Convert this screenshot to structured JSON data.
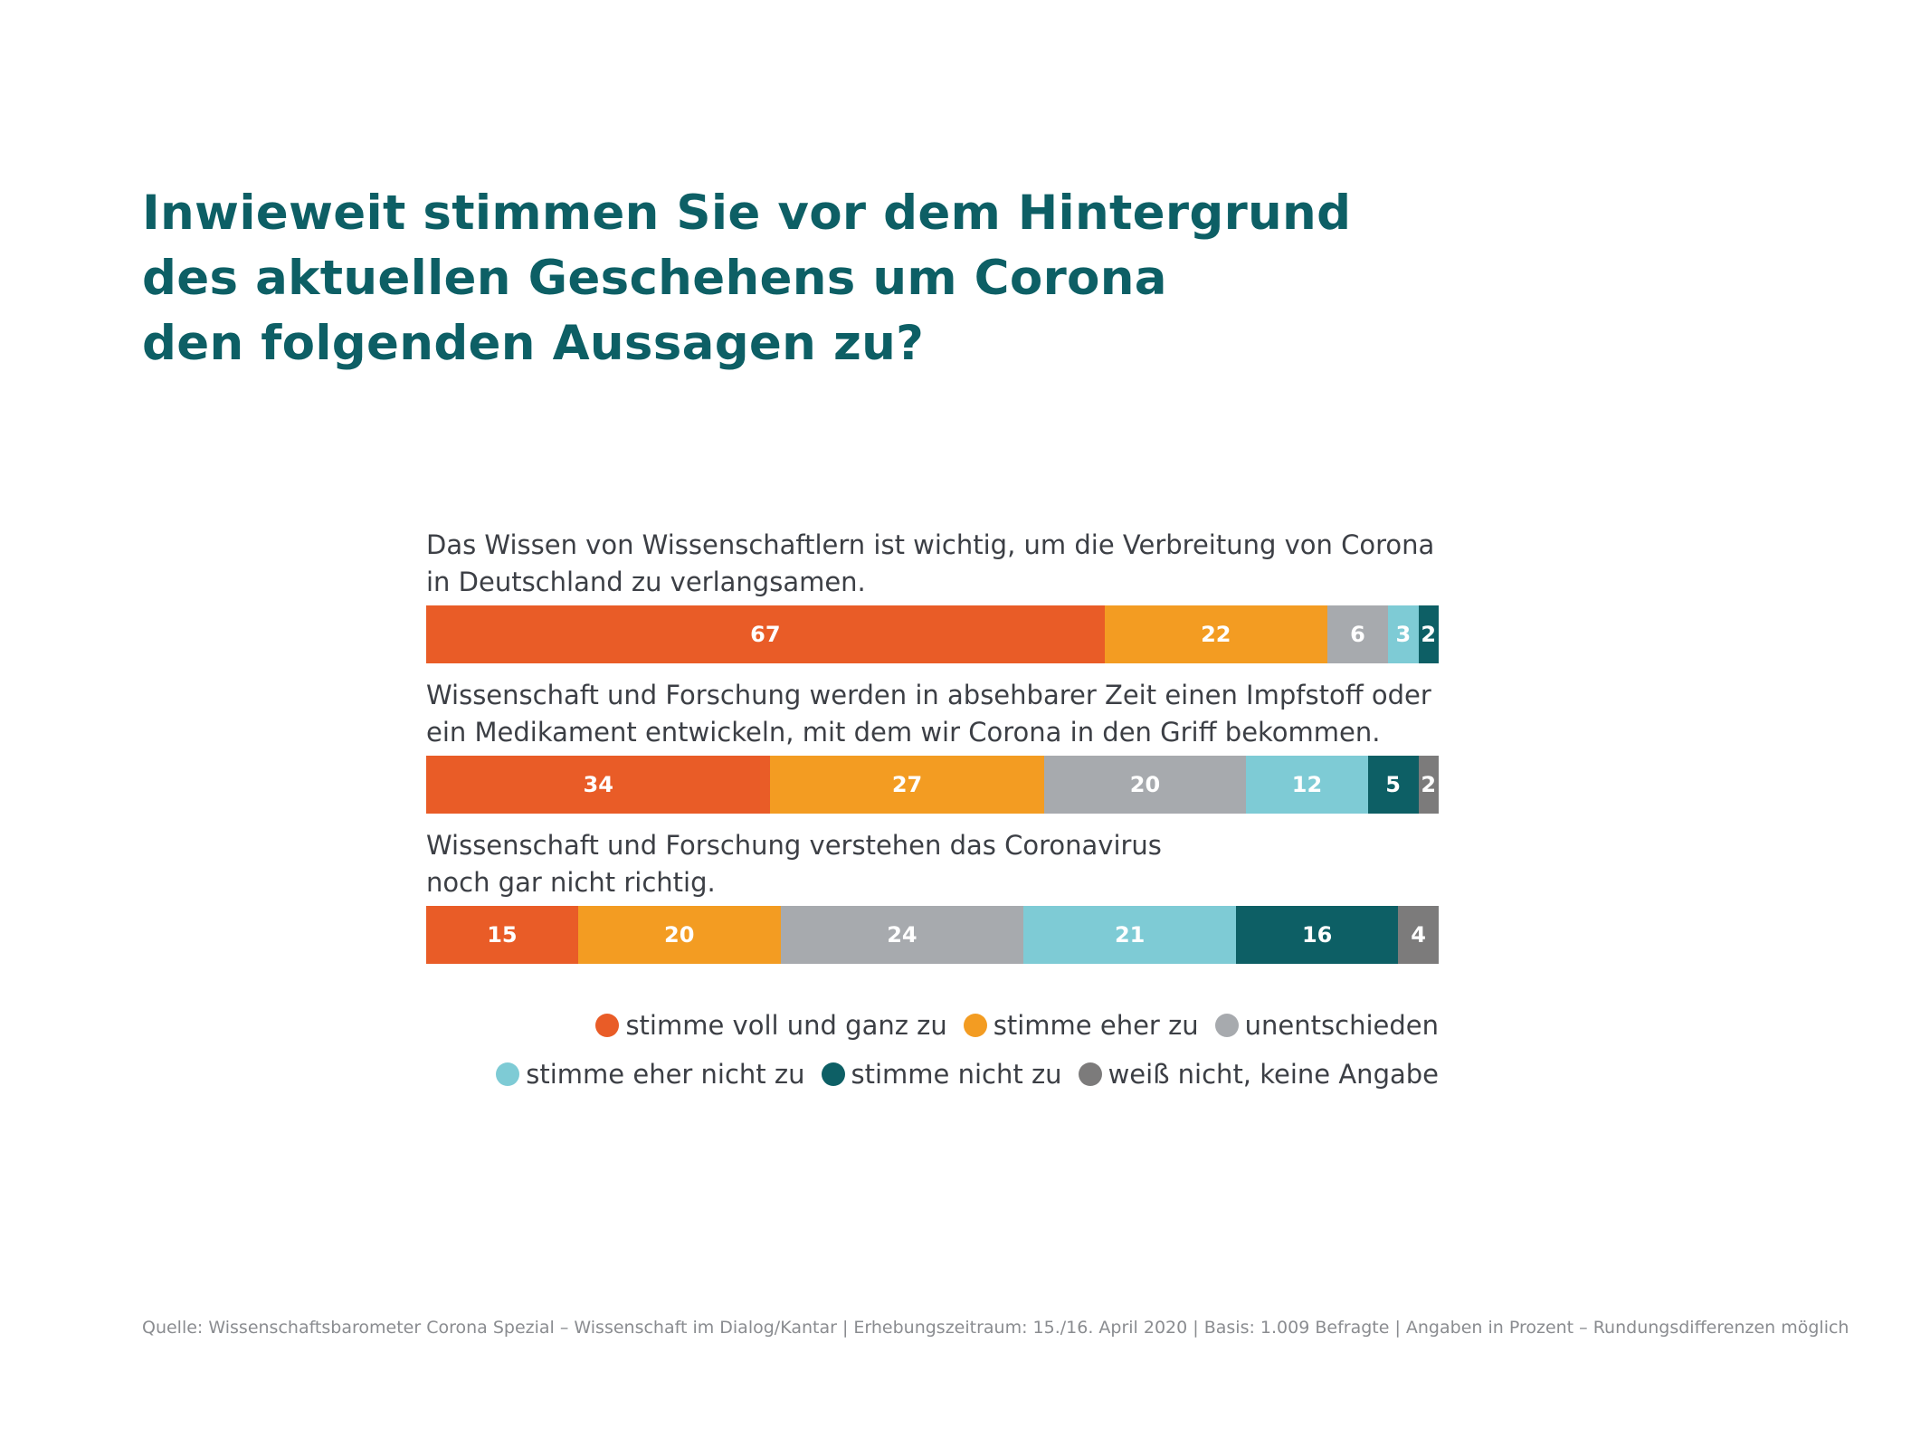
{
  "title_lines": [
    "Inwieweit stimmen Sie vor dem Hintergrund",
    "des aktuellen Geschehens um Corona",
    "den folgenden Aussagen zu?"
  ],
  "colors": {
    "stimme_voll": "#e95c27",
    "stimme_eher": "#f39c22",
    "unentschieden": "#a7aaae",
    "eher_nicht": "#7ecbd5",
    "nicht": "#0d5f65",
    "keine_angabe": "#7c7b7b"
  },
  "chart_data": {
    "type": "bar",
    "orientation": "horizontal",
    "stacked": true,
    "categories": [
      [
        "Das Wissen von Wissenschaftlern ist wichtig, um die Verbreitung von Corona",
        "in Deutschland zu verlangsamen."
      ],
      [
        "Wissenschaft und Forschung werden in absehbarer Zeit einen Impfstoff oder",
        "ein Medikament entwickeln, mit dem wir Corona in den Griff bekommen."
      ],
      [
        "Wissenschaft und Forschung verstehen das Coronavirus",
        "noch gar nicht richtig."
      ]
    ],
    "series": [
      {
        "name": "stimme voll und ganz zu",
        "color": "#e95c27",
        "values": [
          67,
          34,
          15
        ]
      },
      {
        "name": "stimme eher zu",
        "color": "#f39c22",
        "values": [
          22,
          27,
          20
        ]
      },
      {
        "name": "unentschieden",
        "color": "#a7aaae",
        "values": [
          6,
          20,
          24
        ]
      },
      {
        "name": "stimme eher nicht zu",
        "color": "#7ecbd5",
        "values": [
          3,
          12,
          21
        ]
      },
      {
        "name": "stimme nicht zu",
        "color": "#0d5f65",
        "values": [
          2,
          5,
          16
        ]
      },
      {
        "name": "weiß nicht, keine Angabe",
        "color": "#7c7b7b",
        "values": [
          0,
          2,
          4
        ]
      }
    ],
    "legend_rows": [
      [
        0,
        1,
        2
      ],
      [
        3,
        4,
        5
      ]
    ],
    "legend_placement": "bottom-right",
    "grid": false
  },
  "footer": "Quelle: Wissenschaftsbarometer Corona Spezial – Wissenschaft im Dialog/Kantar |  Erhebungszeitraum: 15./16. April 2020 | Basis: 1.009 Befragte | Angaben in Prozent – Rundungsdifferenzen möglich"
}
